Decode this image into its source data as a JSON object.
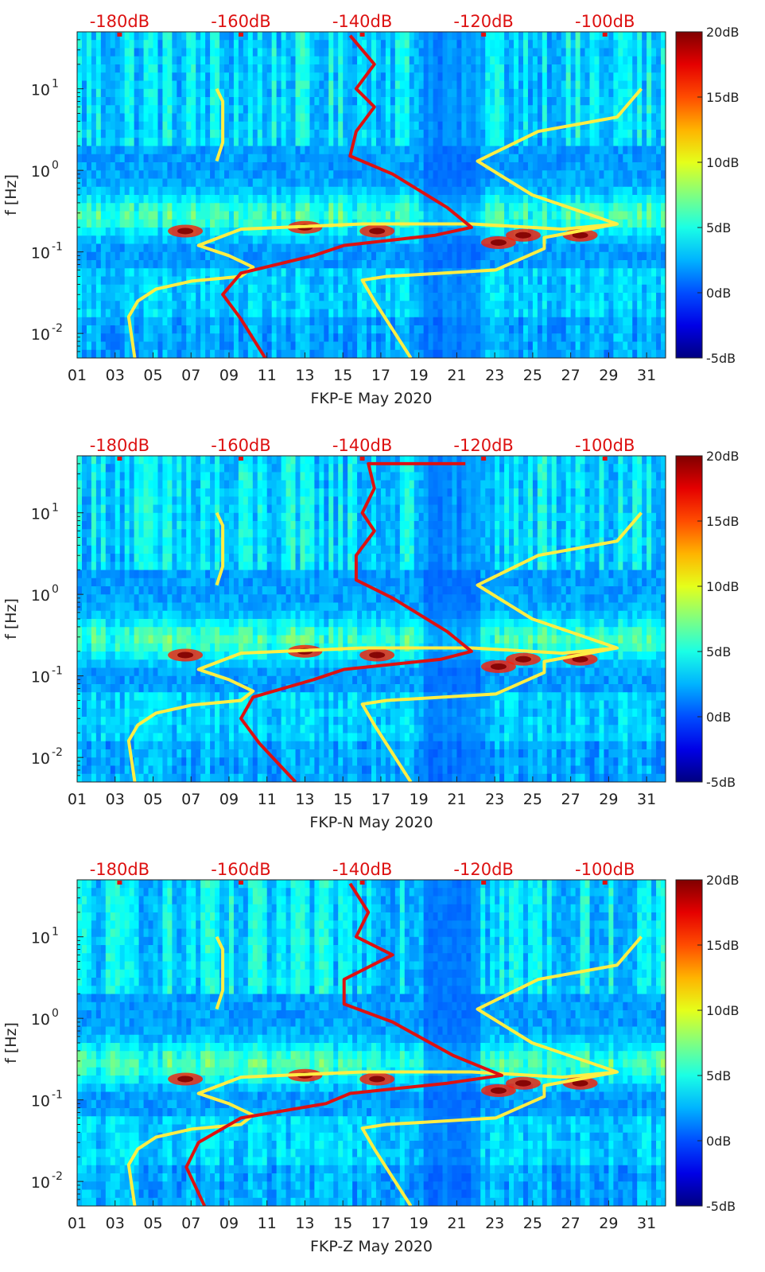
{
  "colors": {
    "background_low": "#00008f",
    "yellow_curve": "#ffee44",
    "red_curve": "#dd1111",
    "db_label": "#dd1111"
  },
  "chart_data": [
    {
      "type": "heatmap",
      "title": "",
      "xlabel": "FKP-E May 2020",
      "ylabel": "f [Hz]",
      "x_ticks": [
        "01",
        "03",
        "05",
        "07",
        "09",
        "11",
        "13",
        "15",
        "17",
        "19",
        "21",
        "23",
        "25",
        "27",
        "29",
        "31"
      ],
      "xlim": [
        1,
        32
      ],
      "y_scale": "log",
      "ylim": [
        0.005,
        50
      ],
      "y_ticks": [
        {
          "value": 0.01,
          "base": "10",
          "exp": "-2"
        },
        {
          "value": 0.1,
          "base": "10",
          "exp": "-1"
        },
        {
          "value": 1,
          "base": "10",
          "exp": "0"
        },
        {
          "value": 10,
          "base": "10",
          "exp": "1"
        }
      ],
      "top_axis_labels": [
        "-180dB",
        "-160dB",
        "-140dB",
        "-120dB",
        "-100dB"
      ],
      "top_axis_range": [
        -187,
        -90
      ],
      "colorbar": {
        "min": -5,
        "max": 20,
        "tick_labels": [
          "20dB",
          "15dB",
          "10dB",
          "5dB",
          "0dB",
          "-5dB"
        ],
        "tick_values": [
          20,
          15,
          10,
          5,
          0,
          -5
        ]
      },
      "overlay_yellow_low": [
        [
          -177.5,
          0.005
        ],
        [
          -178.5,
          0.016
        ],
        [
          -177,
          0.025
        ],
        [
          -174,
          0.035
        ],
        [
          -168,
          0.044
        ],
        [
          -160,
          0.05
        ],
        [
          -158,
          0.065
        ],
        [
          -162,
          0.09
        ],
        [
          -167,
          0.12
        ],
        [
          -160,
          0.19
        ],
        [
          -140,
          0.22
        ],
        [
          -122,
          0.22
        ],
        [
          -107,
          0.19
        ],
        [
          -98,
          0.22
        ]
      ],
      "overlay_yellow_mid": [
        [
          -164,
          1.3
        ],
        [
          -163,
          2.2
        ],
        [
          -163,
          7
        ],
        [
          -164,
          10
        ]
      ],
      "overlay_yellow_high": [
        [
          -132,
          0.005
        ],
        [
          -138,
          0.025
        ],
        [
          -140,
          0.045
        ],
        [
          -136,
          0.05
        ],
        [
          -118,
          0.06
        ],
        [
          -110,
          0.11
        ],
        [
          -110,
          0.15
        ],
        [
          -98,
          0.22
        ],
        [
          -112,
          0.5
        ],
        [
          -121,
          1.3
        ],
        [
          -111,
          3
        ],
        [
          -98,
          4.5
        ],
        [
          -94,
          10
        ]
      ],
      "overlay_red": [
        [
          -156,
          0.005
        ],
        [
          -160,
          0.015
        ],
        [
          -163,
          0.03
        ],
        [
          -160,
          0.055
        ],
        [
          -148,
          0.09
        ],
        [
          -143,
          0.12
        ],
        [
          -128,
          0.16
        ],
        [
          -122,
          0.2
        ],
        [
          -126,
          0.35
        ],
        [
          -135,
          0.9
        ],
        [
          -142,
          1.5
        ],
        [
          -141,
          3
        ],
        [
          -138,
          6
        ],
        [
          -141,
          10
        ],
        [
          -138,
          20
        ],
        [
          -142,
          45
        ]
      ]
    },
    {
      "type": "heatmap",
      "title": "",
      "xlabel": "FKP-N May 2020",
      "ylabel": "f [Hz]",
      "x_ticks": [
        "01",
        "03",
        "05",
        "07",
        "09",
        "11",
        "13",
        "15",
        "17",
        "19",
        "21",
        "23",
        "25",
        "27",
        "29",
        "31"
      ],
      "xlim": [
        1,
        32
      ],
      "y_scale": "log",
      "ylim": [
        0.005,
        50
      ],
      "y_ticks": [
        {
          "value": 0.01,
          "base": "10",
          "exp": "-2"
        },
        {
          "value": 0.1,
          "base": "10",
          "exp": "-1"
        },
        {
          "value": 1,
          "base": "10",
          "exp": "0"
        },
        {
          "value": 10,
          "base": "10",
          "exp": "1"
        }
      ],
      "top_axis_labels": [
        "-180dB",
        "-160dB",
        "-140dB",
        "-120dB",
        "-100dB"
      ],
      "top_axis_range": [
        -187,
        -90
      ],
      "colorbar": {
        "min": -5,
        "max": 20,
        "tick_labels": [
          "20dB",
          "15dB",
          "10dB",
          "5dB",
          "0dB",
          "-5dB"
        ],
        "tick_values": [
          20,
          15,
          10,
          5,
          0,
          -5
        ]
      },
      "overlay_yellow_low": [
        [
          -177.5,
          0.005
        ],
        [
          -178.5,
          0.016
        ],
        [
          -177,
          0.025
        ],
        [
          -174,
          0.035
        ],
        [
          -168,
          0.044
        ],
        [
          -160,
          0.05
        ],
        [
          -158,
          0.065
        ],
        [
          -162,
          0.09
        ],
        [
          -167,
          0.12
        ],
        [
          -160,
          0.19
        ],
        [
          -140,
          0.22
        ],
        [
          -122,
          0.22
        ],
        [
          -107,
          0.19
        ],
        [
          -98,
          0.22
        ]
      ],
      "overlay_yellow_mid": [
        [
          -164,
          1.3
        ],
        [
          -163,
          2.2
        ],
        [
          -163,
          7
        ],
        [
          -164,
          10
        ]
      ],
      "overlay_yellow_high": [
        [
          -132,
          0.005
        ],
        [
          -138,
          0.025
        ],
        [
          -140,
          0.045
        ],
        [
          -136,
          0.05
        ],
        [
          -118,
          0.06
        ],
        [
          -110,
          0.11
        ],
        [
          -110,
          0.15
        ],
        [
          -98,
          0.22
        ],
        [
          -112,
          0.5
        ],
        [
          -121,
          1.3
        ],
        [
          -111,
          3
        ],
        [
          -98,
          4.5
        ],
        [
          -94,
          10
        ]
      ],
      "overlay_red": [
        [
          -151,
          0.005
        ],
        [
          -157,
          0.015
        ],
        [
          -160,
          0.03
        ],
        [
          -158,
          0.055
        ],
        [
          -148,
          0.09
        ],
        [
          -143,
          0.12
        ],
        [
          -127,
          0.16
        ],
        [
          -122,
          0.2
        ],
        [
          -126,
          0.35
        ],
        [
          -135,
          0.9
        ],
        [
          -141,
          1.5
        ],
        [
          -141,
          3
        ],
        [
          -138,
          6
        ],
        [
          -140,
          10
        ],
        [
          -138,
          20
        ],
        [
          -139,
          40
        ],
        [
          -123,
          40
        ]
      ]
    },
    {
      "type": "heatmap",
      "title": "",
      "xlabel": "FKP-Z May 2020",
      "ylabel": "f [Hz]",
      "x_ticks": [
        "01",
        "03",
        "05",
        "07",
        "09",
        "11",
        "13",
        "15",
        "17",
        "19",
        "21",
        "23",
        "25",
        "27",
        "29",
        "31"
      ],
      "xlim": [
        1,
        32
      ],
      "y_scale": "log",
      "ylim": [
        0.005,
        50
      ],
      "y_ticks": [
        {
          "value": 0.01,
          "base": "10",
          "exp": "-2"
        },
        {
          "value": 0.1,
          "base": "10",
          "exp": "-1"
        },
        {
          "value": 1,
          "base": "10",
          "exp": "0"
        },
        {
          "value": 10,
          "base": "10",
          "exp": "1"
        }
      ],
      "top_axis_labels": [
        "-180dB",
        "-160dB",
        "-140dB",
        "-120dB",
        "-100dB"
      ],
      "top_axis_range": [
        -187,
        -90
      ],
      "colorbar": {
        "min": -5,
        "max": 20,
        "tick_labels": [
          "20dB",
          "15dB",
          "10dB",
          "5dB",
          "0dB",
          "-5dB"
        ],
        "tick_values": [
          20,
          15,
          10,
          5,
          0,
          -5
        ]
      },
      "overlay_yellow_low": [
        [
          -177.5,
          0.005
        ],
        [
          -178.5,
          0.016
        ],
        [
          -177,
          0.025
        ],
        [
          -174,
          0.035
        ],
        [
          -168,
          0.044
        ],
        [
          -160,
          0.05
        ],
        [
          -158,
          0.065
        ],
        [
          -162,
          0.09
        ],
        [
          -167,
          0.12
        ],
        [
          -160,
          0.19
        ],
        [
          -140,
          0.22
        ],
        [
          -122,
          0.22
        ],
        [
          -107,
          0.19
        ],
        [
          -98,
          0.22
        ]
      ],
      "overlay_yellow_mid": [
        [
          -164,
          1.3
        ],
        [
          -163,
          2.2
        ],
        [
          -163,
          7
        ],
        [
          -164,
          10
        ]
      ],
      "overlay_yellow_high": [
        [
          -132,
          0.005
        ],
        [
          -138,
          0.025
        ],
        [
          -140,
          0.045
        ],
        [
          -136,
          0.05
        ],
        [
          -118,
          0.06
        ],
        [
          -110,
          0.11
        ],
        [
          -110,
          0.15
        ],
        [
          -98,
          0.22
        ],
        [
          -112,
          0.5
        ],
        [
          -121,
          1.3
        ],
        [
          -111,
          3
        ],
        [
          -98,
          4.5
        ],
        [
          -94,
          10
        ]
      ],
      "overlay_red": [
        [
          -166,
          0.005
        ],
        [
          -169,
          0.015
        ],
        [
          -167,
          0.03
        ],
        [
          -160,
          0.06
        ],
        [
          -146,
          0.09
        ],
        [
          -142,
          0.12
        ],
        [
          -126,
          0.16
        ],
        [
          -117,
          0.2
        ],
        [
          -125,
          0.35
        ],
        [
          -135,
          0.9
        ],
        [
          -143,
          1.5
        ],
        [
          -143,
          3
        ],
        [
          -135,
          6
        ],
        [
          -141,
          10
        ],
        [
          -139,
          20
        ],
        [
          -142,
          45
        ]
      ]
    }
  ]
}
